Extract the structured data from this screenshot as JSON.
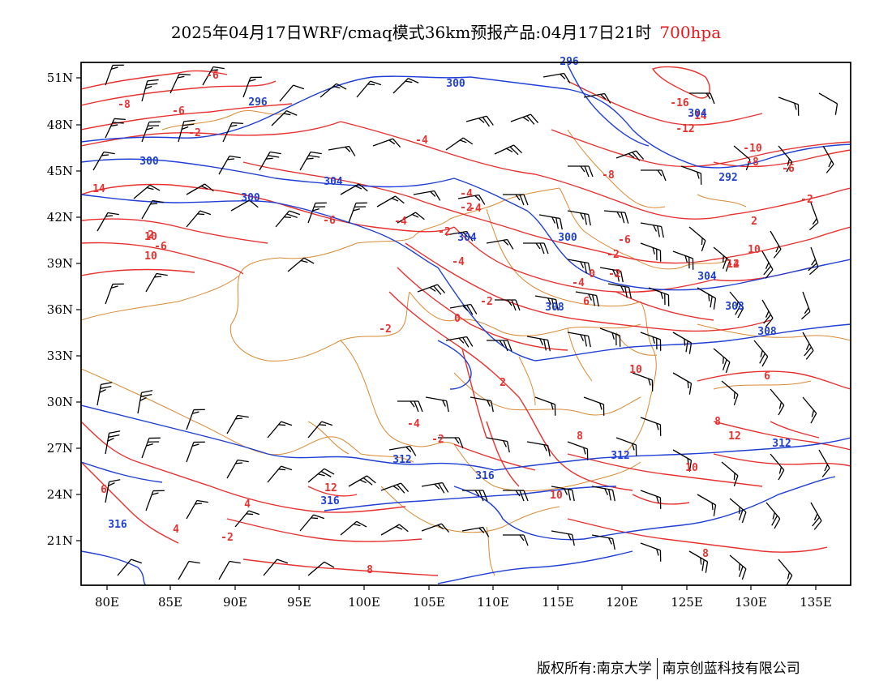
{
  "title": {
    "main": "2025年04月17日WRF/cmaq模式36km预报产品:04月17日21时",
    "level": "700hpa"
  },
  "colors": {
    "temperature": "#e8312f",
    "height": "#1f3fd6",
    "wind": "#000000",
    "boundary": "#d98a33",
    "level": "#e8191e"
  },
  "map": {
    "lon_ticks": [
      "80E",
      "85E",
      "90E",
      "95E",
      "100E",
      "105E",
      "110E",
      "115E",
      "120E",
      "125E",
      "130E",
      "135E"
    ],
    "lat_ticks": [
      "51N",
      "48N",
      "45N",
      "42N",
      "39N",
      "36N",
      "33N",
      "30N",
      "27N",
      "24N",
      "21N"
    ]
  },
  "temp_labels": [
    "-6",
    "-8",
    "-6",
    "-2",
    "-4",
    "-16",
    "-14",
    "-12",
    "-10",
    "-8",
    "-6",
    "-4",
    "-2",
    "-2",
    "-4",
    "-6",
    "-4",
    "-2",
    "0",
    "-2",
    "-4",
    "-6",
    "-8",
    "-4",
    "-2",
    "0",
    "2",
    "-2",
    "-4",
    "-2",
    "6",
    "8",
    "10",
    "10",
    "12",
    "8",
    "6",
    "4",
    "-2",
    "4",
    "8",
    "8",
    "6",
    "10",
    "12",
    "10",
    "10",
    "14",
    "12",
    "10",
    "2",
    "-2",
    "-4",
    "-6",
    "2"
  ],
  "height_labels": [
    "296",
    "300",
    "300",
    "304",
    "300",
    "296",
    "292",
    "304",
    "304",
    "300",
    "304",
    "308",
    "308",
    "308",
    "312",
    "312",
    "312",
    "316",
    "316",
    "316"
  ],
  "footer": {
    "left": "版权所有:南京大学",
    "right": "南京创蓝科技有限公司"
  }
}
